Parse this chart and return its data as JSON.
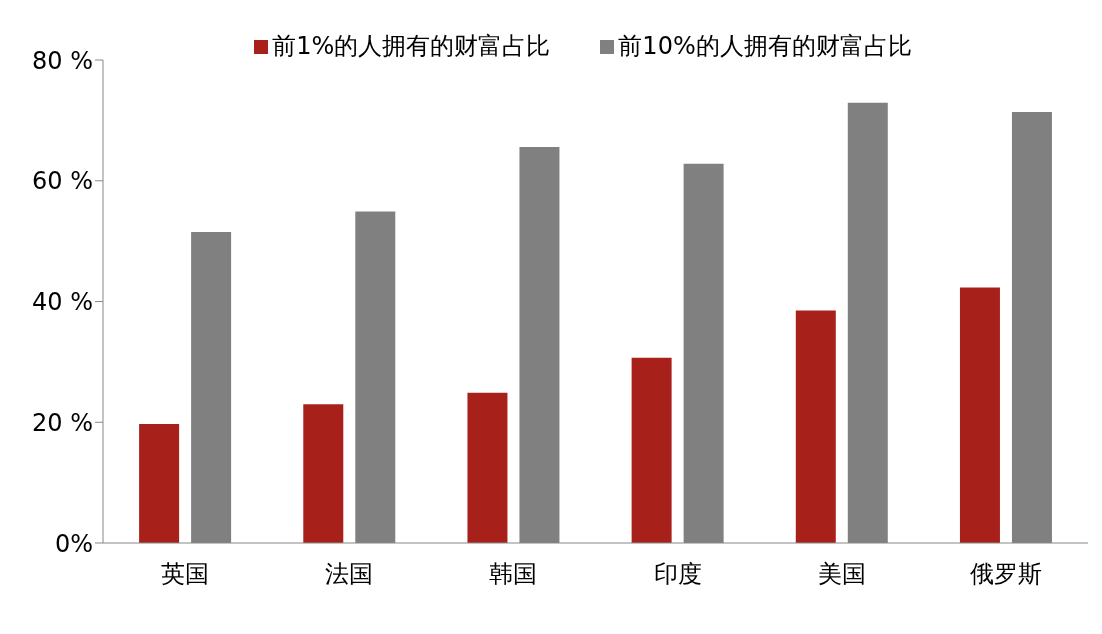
{
  "chart_data": {
    "type": "bar",
    "categories": [
      "英国",
      "法国",
      "韩国",
      "印度",
      "美国",
      "俄罗斯"
    ],
    "series": [
      {
        "name": "前1%的人拥有的财富占比",
        "color": "#a8201a",
        "values": [
          19.7,
          23.0,
          24.9,
          30.7,
          38.5,
          42.3
        ]
      },
      {
        "name": "前10%的人拥有的财富占比",
        "color": "#808080",
        "values": [
          51.5,
          54.9,
          65.6,
          62.8,
          72.9,
          71.4
        ]
      }
    ],
    "ylim": [
      0,
      80
    ],
    "yticks": [
      {
        "value": 0,
        "label": "0%"
      },
      {
        "value": 20,
        "label": "20 %"
      },
      {
        "value": 40,
        "label": "40 %"
      },
      {
        "value": 60,
        "label": "60 %"
      },
      {
        "value": 80,
        "label": "80 %"
      }
    ],
    "grid": false,
    "legend": "top"
  }
}
